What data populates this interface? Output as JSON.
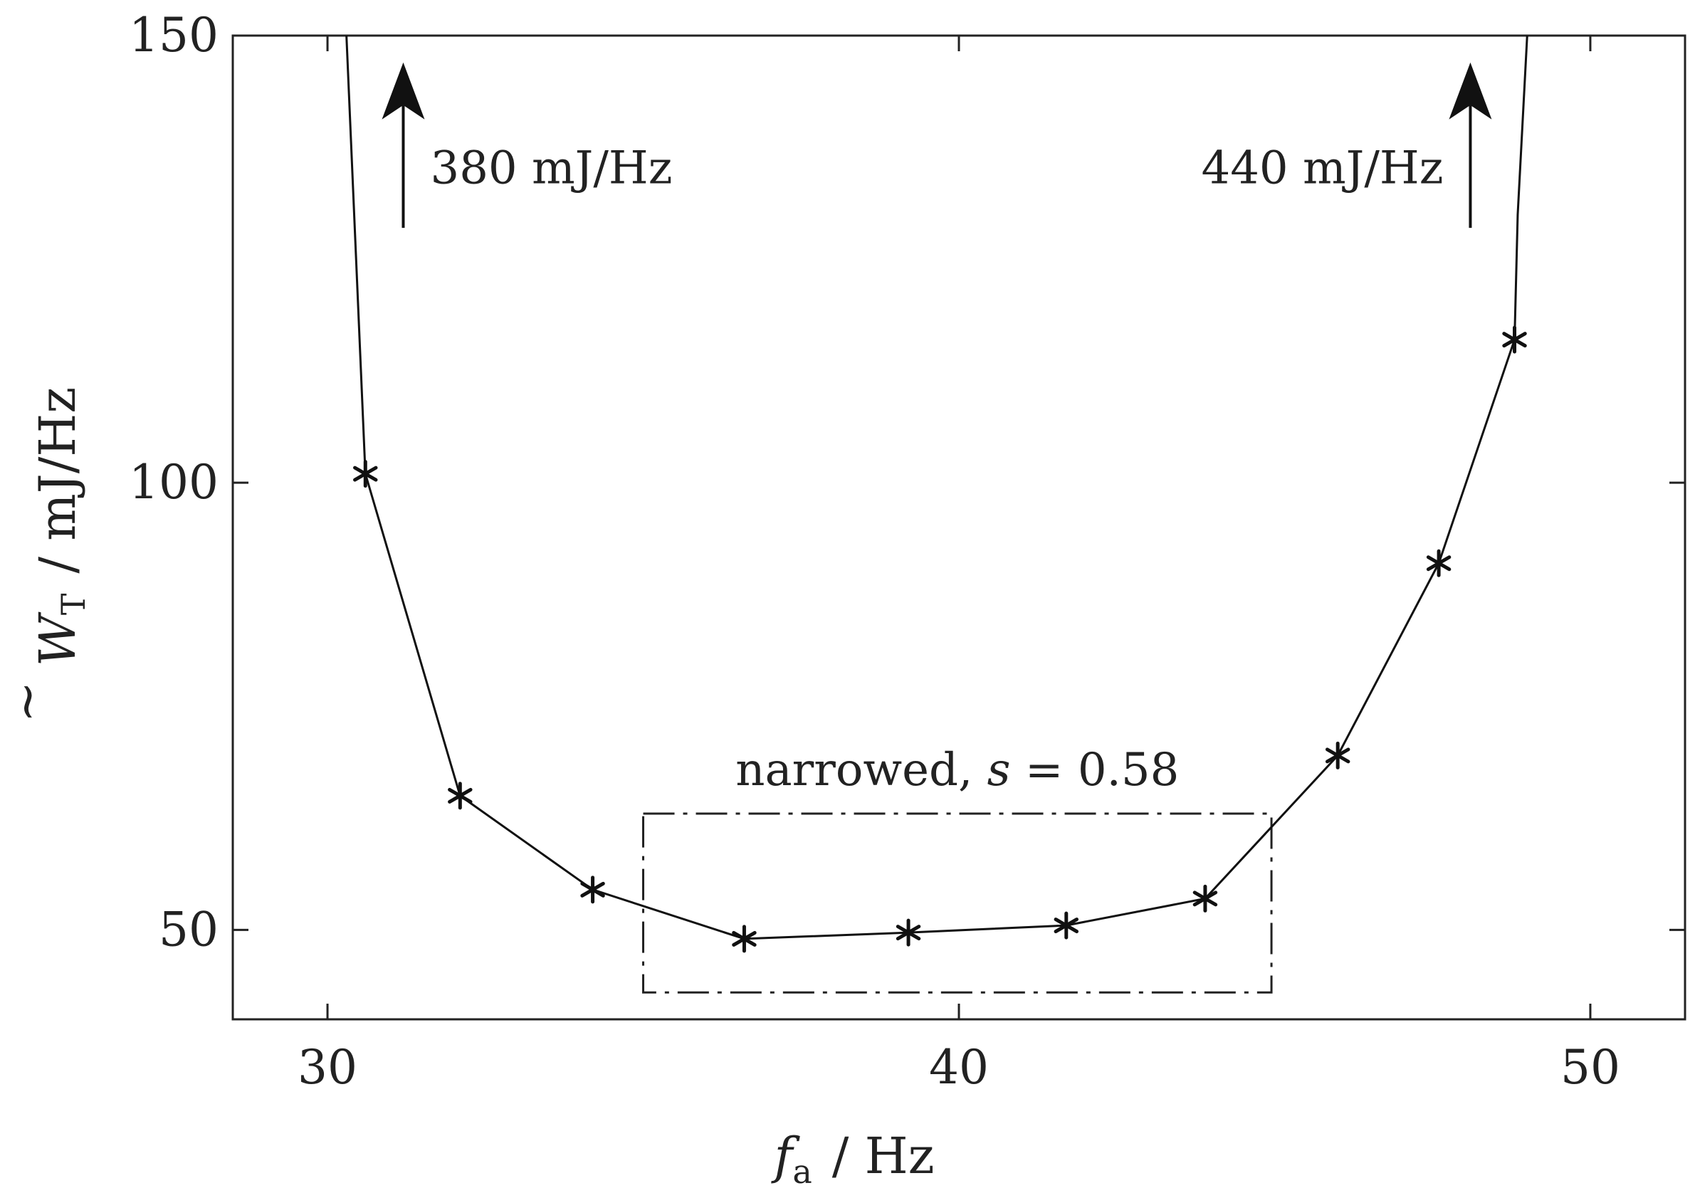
{
  "chart_data": {
    "type": "line",
    "xlabel": {
      "symbol": "f",
      "subscript": "a",
      "unit": "/ Hz"
    },
    "ylabel": {
      "symbol": "W",
      "subscript": "T",
      "unit": "/ mJ/Hz"
    },
    "xlim": [
      28.5,
      51.5
    ],
    "ylim": [
      40,
      150
    ],
    "xticks": [
      30,
      40,
      50
    ],
    "yticks": [
      50,
      100,
      150
    ],
    "grid": false,
    "series": [
      {
        "x": [
          30.3,
          30.6,
          32.1,
          34.2,
          36.6,
          39.2,
          41.7,
          43.9,
          46.0,
          47.6,
          48.8,
          48.85,
          49.0
        ],
        "y": [
          150,
          101,
          65,
          54.5,
          49,
          49.7,
          50.5,
          53.5,
          69.5,
          91,
          116,
          130,
          150
        ],
        "markers": [
          false,
          true,
          true,
          true,
          true,
          true,
          true,
          true,
          true,
          true,
          true,
          false,
          false
        ]
      }
    ],
    "annotations": [
      {
        "text": "380 mJ/Hz",
        "arrow_x": 31.2,
        "arrow_from_y": 128.5,
        "arrow_to_y": 147
      },
      {
        "text": "440 mJ/Hz",
        "arrow_x": 48.1,
        "arrow_from_y": 128.5,
        "arrow_to_y": 147
      }
    ],
    "box": {
      "label_prefix": "narrowed, ",
      "label_var": "s",
      "label_rest": " = 0.58",
      "x_range": [
        35.0,
        44.95
      ],
      "y_range": [
        43,
        63
      ]
    }
  }
}
